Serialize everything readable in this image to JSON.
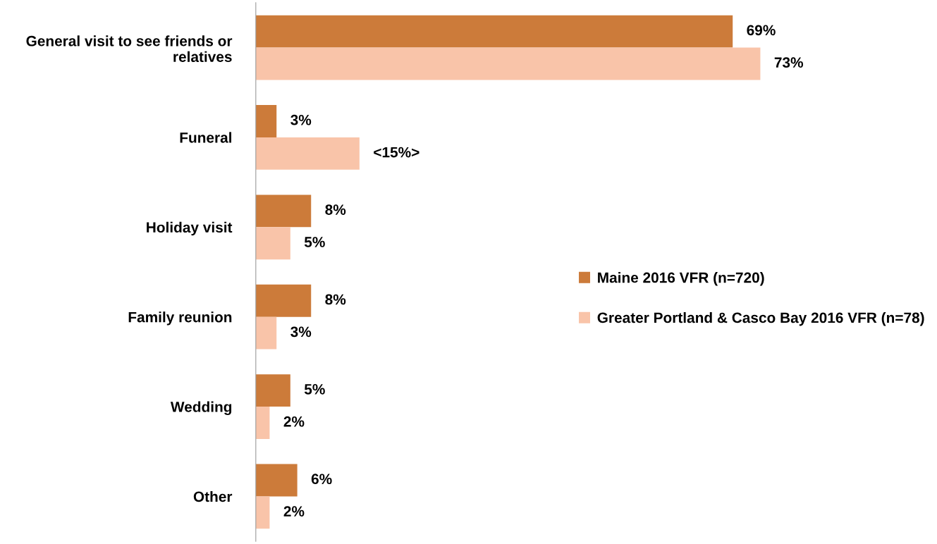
{
  "chart_data": {
    "type": "bar",
    "orientation": "horizontal",
    "categories": [
      "General visit to see friends or relatives",
      "Funeral",
      "Holiday visit",
      "Family reunion",
      "Wedding",
      "Other"
    ],
    "series": [
      {
        "name": "Maine 2016 VFR (n=720)",
        "color": "#cc7b3a",
        "values": [
          69,
          3,
          8,
          8,
          5,
          6
        ],
        "value_labels": [
          "69%",
          "3%",
          "8%",
          "8%",
          "5%",
          "6%"
        ]
      },
      {
        "name": "Greater Portland & Casco Bay 2016 VFR (n=78)",
        "color": "#f9c4a9",
        "values": [
          73,
          15,
          5,
          3,
          2,
          2
        ],
        "value_labels": [
          "73%",
          "<15%>",
          "5%",
          "3%",
          "2%",
          "2%"
        ]
      }
    ],
    "legend": "right",
    "grid": false,
    "tick_labels": "y"
  }
}
